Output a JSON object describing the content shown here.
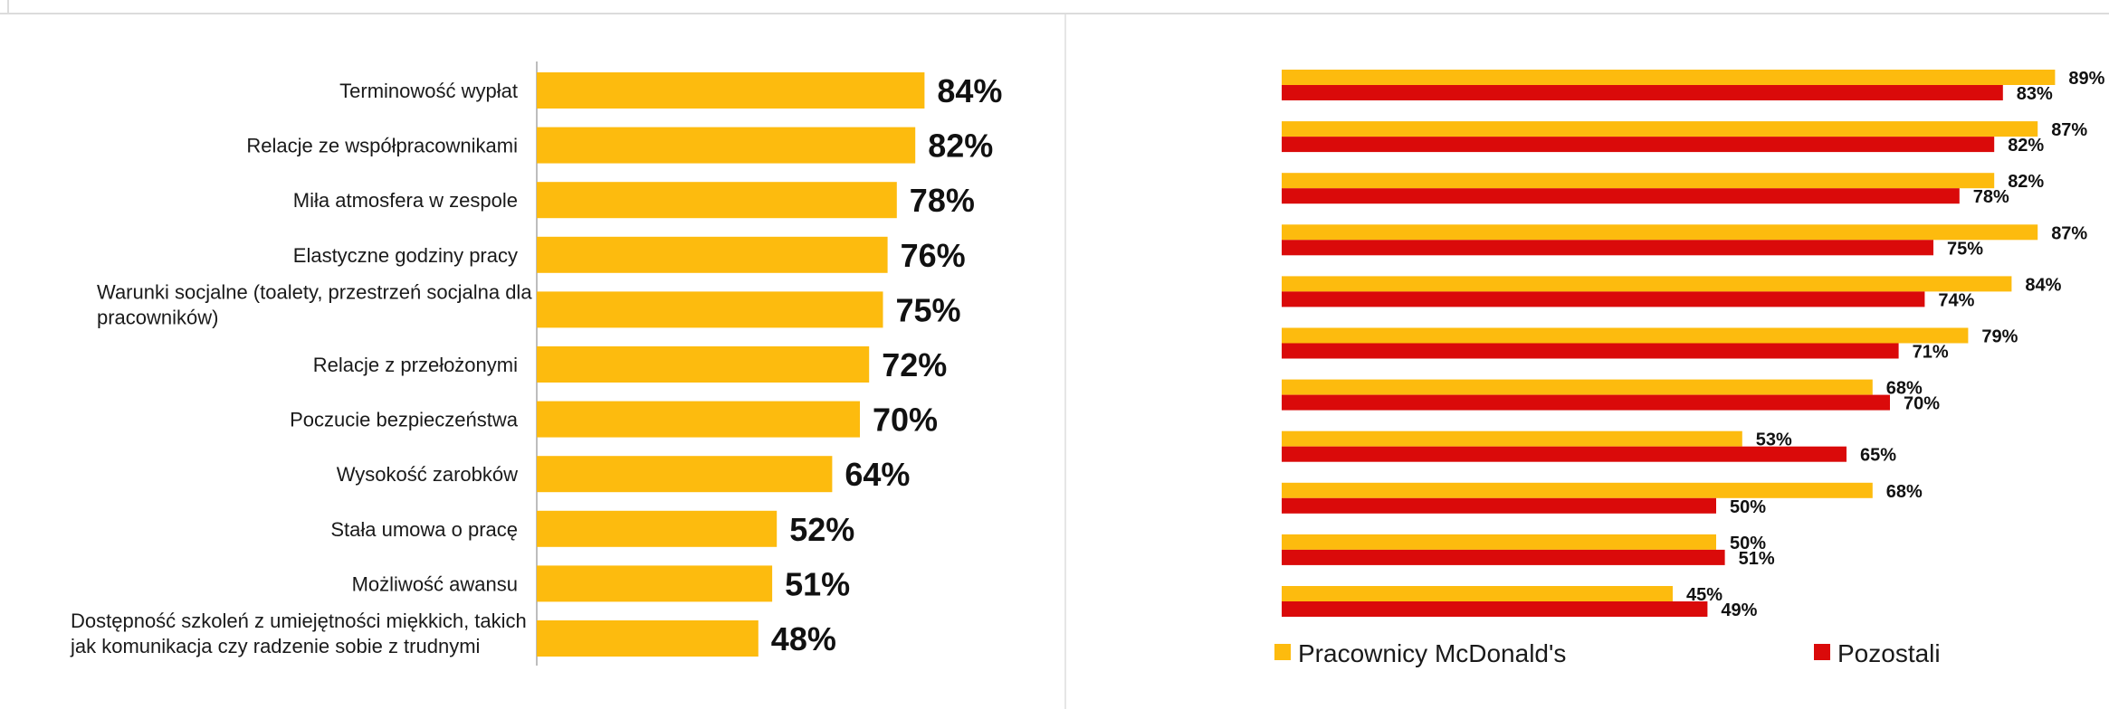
{
  "colors": {
    "yellow": "#FDBB0E",
    "red": "#DA0A0A",
    "axis": "#bdbdbd",
    "divider": "#e6e6e6"
  },
  "chart_data": [
    {
      "type": "bar",
      "orientation": "horizontal",
      "title": "",
      "categories": [
        [
          "Terminowość wypłat"
        ],
        [
          "Relacje ze współpracownikami"
        ],
        [
          "Miła atmosfera w zespole"
        ],
        [
          "Elastyczne godziny pracy"
        ],
        [
          "Warunki socjalne (toalety, przestrzeń socjalna dla",
          "pracowników)"
        ],
        [
          "Relacje z przełożonymi"
        ],
        [
          "Poczucie bezpieczeństwa"
        ],
        [
          "Wysokość zarobków"
        ],
        [
          "Stała umowa o pracę"
        ],
        [
          "Możliwość awansu"
        ],
        [
          "Dostępność szkoleń z umiejętności miękkich, takich",
          "jak komunikacja czy radzenie sobie z trudnymi"
        ]
      ],
      "values": [
        84,
        82,
        78,
        76,
        75,
        72,
        70,
        64,
        52,
        51,
        48
      ],
      "value_suffix": "%",
      "xlim": [
        0,
        100
      ],
      "grid": false
    },
    {
      "type": "bar",
      "orientation": "horizontal",
      "title": "",
      "series": [
        {
          "name": "Pracownicy McDonald's",
          "color": "#FDBB0E",
          "values": [
            89,
            87,
            82,
            87,
            84,
            79,
            68,
            53,
            68,
            50,
            45
          ]
        },
        {
          "name": "Pozostali",
          "color": "#DA0A0A",
          "values": [
            83,
            82,
            78,
            75,
            74,
            71,
            70,
            65,
            50,
            51,
            49
          ]
        }
      ],
      "value_suffix": "%",
      "xlim": [
        0,
        100
      ],
      "legend": "bottom",
      "grid": false
    }
  ]
}
